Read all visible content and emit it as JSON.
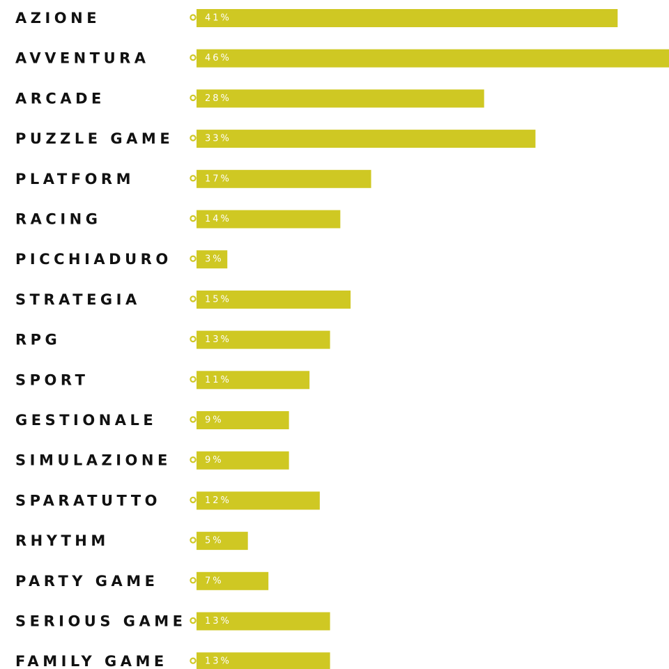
{
  "chart_data": {
    "type": "bar",
    "orientation": "horizontal",
    "categories": [
      "AZIONE",
      "AVVENTURA",
      "ARCADE",
      "PUZZLE GAME",
      "PLATFORM",
      "RACING",
      "PICCHIADURO",
      "STRATEGIA",
      "RPG",
      "SPORT",
      "GESTIONALE",
      "SIMULAZIONE",
      "SPARATUTTO",
      "RHYTHM",
      "PARTY GAME",
      "SERIOUS GAME",
      "FAMILY GAME"
    ],
    "values": [
      41,
      46,
      28,
      33,
      17,
      14,
      3,
      15,
      13,
      11,
      9,
      9,
      12,
      5,
      7,
      13,
      13
    ],
    "value_labels": [
      "41%",
      "46%",
      "28%",
      "33%",
      "17%",
      "14%",
      "3%",
      "15%",
      "13%",
      "11%",
      "9%",
      "9%",
      "12%",
      "5%",
      "7%",
      "13%",
      "13%"
    ],
    "unit": "%",
    "xlim": [
      0,
      46
    ],
    "grid": false,
    "legend": "none",
    "colors": {
      "bar": "#CFC823",
      "marker": "#CFC823",
      "label": "#111111",
      "value_text": "#ffffff"
    }
  }
}
